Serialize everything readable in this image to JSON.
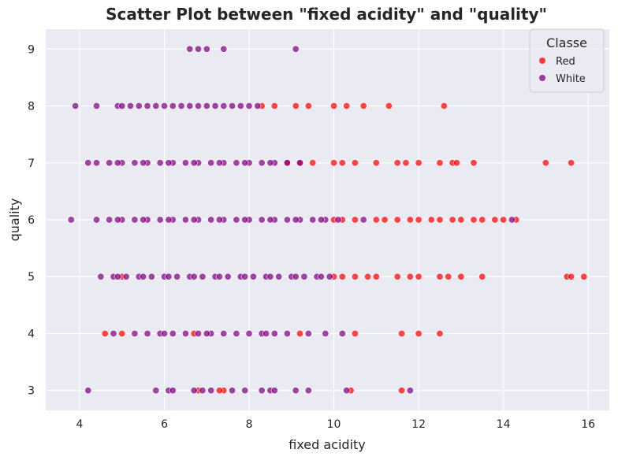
{
  "chart_data": {
    "type": "scatter",
    "title": "Scatter Plot between \"fixed acidity\" and \"quality\"",
    "xlabel": "fixed acidity",
    "ylabel": "quality",
    "xlim": [
      3.2,
      16.5
    ],
    "ylim": [
      2.65,
      9.35
    ],
    "x_ticks": [
      4,
      6,
      8,
      10,
      12,
      14,
      16
    ],
    "y_ticks": [
      3,
      4,
      5,
      6,
      7,
      8,
      9
    ],
    "grid": true,
    "legend": {
      "title": "Classe",
      "position": "top-right"
    },
    "colors": {
      "Red": "#ff0000",
      "White": "#800080",
      "background": "#eaeaf2",
      "grid": "#ffffff"
    },
    "series": [
      {
        "name": "Red",
        "points": [
          [
            7.4,
            3
          ],
          [
            10.4,
            3
          ],
          [
            11.6,
            3
          ],
          [
            7.3,
            3
          ],
          [
            6.8,
            3
          ],
          [
            4.6,
            4
          ],
          [
            5.0,
            4
          ],
          [
            10.5,
            4
          ],
          [
            11.6,
            4
          ],
          [
            12.0,
            4
          ],
          [
            12.5,
            4
          ],
          [
            6.7,
            4
          ],
          [
            9.2,
            4
          ],
          [
            5.0,
            5
          ],
          [
            10.0,
            5
          ],
          [
            10.5,
            5
          ],
          [
            11.0,
            5
          ],
          [
            11.5,
            5
          ],
          [
            12.0,
            5
          ],
          [
            12.5,
            5
          ],
          [
            13.0,
            5
          ],
          [
            13.5,
            5
          ],
          [
            15.5,
            5
          ],
          [
            15.6,
            5
          ],
          [
            15.9,
            5
          ],
          [
            10.2,
            5
          ],
          [
            10.8,
            5
          ],
          [
            12.7,
            5
          ],
          [
            11.8,
            5
          ],
          [
            10.0,
            6
          ],
          [
            10.5,
            6
          ],
          [
            11.0,
            6
          ],
          [
            11.5,
            6
          ],
          [
            12.0,
            6
          ],
          [
            12.5,
            6
          ],
          [
            13.0,
            6
          ],
          [
            13.5,
            6
          ],
          [
            13.8,
            6
          ],
          [
            14.0,
            6
          ],
          [
            14.3,
            6
          ],
          [
            10.2,
            6
          ],
          [
            11.2,
            6
          ],
          [
            11.8,
            6
          ],
          [
            12.3,
            6
          ],
          [
            12.8,
            6
          ],
          [
            13.3,
            6
          ],
          [
            8.9,
            7
          ],
          [
            9.5,
            7
          ],
          [
            10.0,
            7
          ],
          [
            10.5,
            7
          ],
          [
            11.0,
            7
          ],
          [
            11.5,
            7
          ],
          [
            12.0,
            7
          ],
          [
            12.5,
            7
          ],
          [
            12.8,
            7
          ],
          [
            13.3,
            7
          ],
          [
            15.0,
            7
          ],
          [
            15.6,
            7
          ],
          [
            10.2,
            7
          ],
          [
            11.7,
            7
          ],
          [
            12.9,
            7
          ],
          [
            9.2,
            7
          ],
          [
            8.6,
            8
          ],
          [
            9.1,
            8
          ],
          [
            9.4,
            8
          ],
          [
            10.0,
            8
          ],
          [
            10.3,
            8
          ],
          [
            10.7,
            8
          ],
          [
            11.3,
            8
          ],
          [
            12.6,
            8
          ],
          [
            8.3,
            8
          ]
        ]
      },
      {
        "name": "White",
        "points": [
          [
            6.6,
            9
          ],
          [
            6.8,
            9
          ],
          [
            7.0,
            9
          ],
          [
            7.4,
            9
          ],
          [
            9.1,
            9
          ],
          [
            3.9,
            8
          ],
          [
            4.4,
            8
          ],
          [
            4.9,
            8
          ],
          [
            5.2,
            8
          ],
          [
            5.6,
            8
          ],
          [
            6.0,
            8
          ],
          [
            6.4,
            8
          ],
          [
            6.8,
            8
          ],
          [
            7.2,
            8
          ],
          [
            7.6,
            8
          ],
          [
            8.0,
            8
          ],
          [
            5.0,
            8
          ],
          [
            5.4,
            8
          ],
          [
            5.8,
            8
          ],
          [
            6.2,
            8
          ],
          [
            6.6,
            8
          ],
          [
            7.0,
            8
          ],
          [
            7.4,
            8
          ],
          [
            7.8,
            8
          ],
          [
            8.2,
            8
          ],
          [
            4.2,
            7
          ],
          [
            4.4,
            7
          ],
          [
            4.7,
            7
          ],
          [
            5.0,
            7
          ],
          [
            5.3,
            7
          ],
          [
            5.6,
            7
          ],
          [
            5.9,
            7
          ],
          [
            6.2,
            7
          ],
          [
            6.5,
            7
          ],
          [
            6.8,
            7
          ],
          [
            7.1,
            7
          ],
          [
            7.4,
            7
          ],
          [
            7.7,
            7
          ],
          [
            8.0,
            7
          ],
          [
            8.3,
            7
          ],
          [
            8.6,
            7
          ],
          [
            8.9,
            7
          ],
          [
            9.2,
            7
          ],
          [
            4.9,
            7
          ],
          [
            5.5,
            7
          ],
          [
            6.1,
            7
          ],
          [
            6.7,
            7
          ],
          [
            7.3,
            7
          ],
          [
            7.9,
            7
          ],
          [
            8.5,
            7
          ],
          [
            3.8,
            6
          ],
          [
            4.4,
            6
          ],
          [
            4.7,
            6
          ],
          [
            5.0,
            6
          ],
          [
            5.3,
            6
          ],
          [
            5.6,
            6
          ],
          [
            5.9,
            6
          ],
          [
            6.2,
            6
          ],
          [
            6.5,
            6
          ],
          [
            6.8,
            6
          ],
          [
            7.1,
            6
          ],
          [
            7.4,
            6
          ],
          [
            7.7,
            6
          ],
          [
            8.0,
            6
          ],
          [
            8.3,
            6
          ],
          [
            8.6,
            6
          ],
          [
            8.9,
            6
          ],
          [
            9.2,
            6
          ],
          [
            9.5,
            6
          ],
          [
            9.8,
            6
          ],
          [
            10.1,
            6
          ],
          [
            10.7,
            6
          ],
          [
            14.2,
            6
          ],
          [
            4.9,
            6
          ],
          [
            5.5,
            6
          ],
          [
            6.1,
            6
          ],
          [
            6.7,
            6
          ],
          [
            7.3,
            6
          ],
          [
            7.9,
            6
          ],
          [
            8.5,
            6
          ],
          [
            9.1,
            6
          ],
          [
            9.7,
            6
          ],
          [
            4.5,
            5
          ],
          [
            4.8,
            5
          ],
          [
            5.1,
            5
          ],
          [
            5.4,
            5
          ],
          [
            5.7,
            5
          ],
          [
            6.0,
            5
          ],
          [
            6.3,
            5
          ],
          [
            6.6,
            5
          ],
          [
            6.9,
            5
          ],
          [
            7.2,
            5
          ],
          [
            7.5,
            5
          ],
          [
            7.8,
            5
          ],
          [
            8.1,
            5
          ],
          [
            8.4,
            5
          ],
          [
            8.7,
            5
          ],
          [
            9.0,
            5
          ],
          [
            9.3,
            5
          ],
          [
            9.6,
            5
          ],
          [
            9.9,
            5
          ],
          [
            4.9,
            5
          ],
          [
            5.5,
            5
          ],
          [
            6.1,
            5
          ],
          [
            6.7,
            5
          ],
          [
            7.3,
            5
          ],
          [
            7.9,
            5
          ],
          [
            8.5,
            5
          ],
          [
            9.1,
            5
          ],
          [
            9.7,
            5
          ],
          [
            4.8,
            4
          ],
          [
            5.3,
            4
          ],
          [
            5.6,
            4
          ],
          [
            5.9,
            4
          ],
          [
            6.2,
            4
          ],
          [
            6.5,
            4
          ],
          [
            6.8,
            4
          ],
          [
            7.1,
            4
          ],
          [
            7.4,
            4
          ],
          [
            7.7,
            4
          ],
          [
            8.0,
            4
          ],
          [
            8.3,
            4
          ],
          [
            8.6,
            4
          ],
          [
            8.9,
            4
          ],
          [
            9.4,
            4
          ],
          [
            9.8,
            4
          ],
          [
            10.2,
            4
          ],
          [
            6.0,
            4
          ],
          [
            7.0,
            4
          ],
          [
            8.4,
            4
          ],
          [
            4.2,
            3
          ],
          [
            5.8,
            3
          ],
          [
            6.1,
            3
          ],
          [
            6.2,
            3
          ],
          [
            6.7,
            3
          ],
          [
            6.9,
            3
          ],
          [
            7.1,
            3
          ],
          [
            7.6,
            3
          ],
          [
            7.9,
            3
          ],
          [
            8.3,
            3
          ],
          [
            8.5,
            3
          ],
          [
            8.6,
            3
          ],
          [
            9.1,
            3
          ],
          [
            9.4,
            3
          ],
          [
            10.3,
            3
          ],
          [
            11.8,
            3
          ]
        ]
      }
    ]
  }
}
